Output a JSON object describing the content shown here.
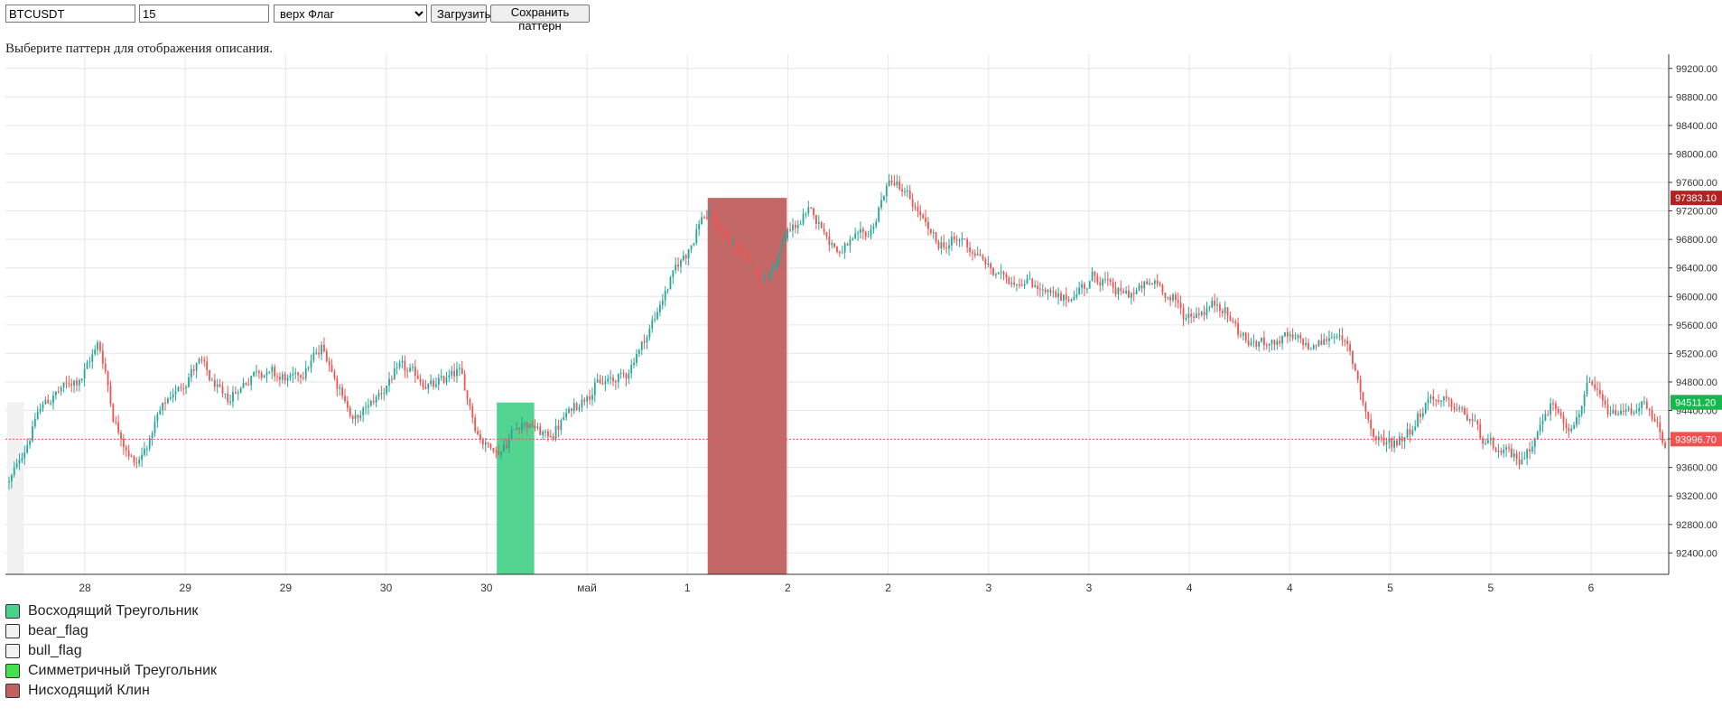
{
  "controls": {
    "symbol_value": "BTCUSDT",
    "interval_value": "15",
    "pattern_select": "верх Флаг",
    "load_label": "Загрузить",
    "save_label": "Сохранить паттерн"
  },
  "description": "Выберите паттерн для отображения описания.",
  "legend": [
    {
      "label": "Восходящий Треугольник",
      "color": "#4ad28a"
    },
    {
      "label": "bear_flag",
      "color": "#f2f2f2"
    },
    {
      "label": "bull_flag",
      "color": "#f2f2f2"
    },
    {
      "label": "Симметричный Треугольник",
      "color": "#44e04e"
    },
    {
      "label": "Нисходящий Клин",
      "color": "#c0605f"
    }
  ],
  "chart_data": {
    "type": "candlestick",
    "symbol": "BTCUSDT",
    "interval": "15",
    "ylim": [
      92100,
      99400
    ],
    "y_ticks": [
      99200,
      98800,
      98400,
      98000,
      97600,
      97200,
      96800,
      96400,
      96000,
      95600,
      95200,
      94800,
      94400,
      94000,
      93600,
      93200,
      92800,
      92400
    ],
    "x_tick_labels": [
      "28",
      "29",
      "29",
      "30",
      "30",
      "май",
      "1",
      "2",
      "2",
      "3",
      "3",
      "4",
      "4",
      "5",
      "5",
      "6"
    ],
    "price_anchors": [
      {
        "t": 0,
        "p": 93400
      },
      {
        "t": 12,
        "p": 94500
      },
      {
        "t": 28,
        "p": 94900
      },
      {
        "t": 34,
        "p": 95400
      },
      {
        "t": 40,
        "p": 94200
      },
      {
        "t": 48,
        "p": 93600
      },
      {
        "t": 58,
        "p": 94400
      },
      {
        "t": 72,
        "p": 95100
      },
      {
        "t": 82,
        "p": 94500
      },
      {
        "t": 95,
        "p": 95000
      },
      {
        "t": 108,
        "p": 94800
      },
      {
        "t": 120,
        "p": 95300
      },
      {
        "t": 132,
        "p": 94200
      },
      {
        "t": 140,
        "p": 94600
      },
      {
        "t": 150,
        "p": 95000
      },
      {
        "t": 162,
        "p": 94700
      },
      {
        "t": 172,
        "p": 95000
      },
      {
        "t": 180,
        "p": 94000
      },
      {
        "t": 188,
        "p": 93800
      },
      {
        "t": 196,
        "p": 94300
      },
      {
        "t": 206,
        "p": 94000
      },
      {
        "t": 222,
        "p": 94700
      },
      {
        "t": 236,
        "p": 94900
      },
      {
        "t": 246,
        "p": 95600
      },
      {
        "t": 254,
        "p": 96300
      },
      {
        "t": 262,
        "p": 96800
      },
      {
        "t": 266,
        "p": 97200
      },
      {
        "t": 278,
        "p": 96700
      },
      {
        "t": 290,
        "p": 96200
      },
      {
        "t": 298,
        "p": 96900
      },
      {
        "t": 308,
        "p": 97200
      },
      {
        "t": 318,
        "p": 96600
      },
      {
        "t": 330,
        "p": 96900
      },
      {
        "t": 338,
        "p": 97700
      },
      {
        "t": 346,
        "p": 97300
      },
      {
        "t": 356,
        "p": 96700
      },
      {
        "t": 366,
        "p": 96800
      },
      {
        "t": 378,
        "p": 96300
      },
      {
        "t": 392,
        "p": 96200
      },
      {
        "t": 404,
        "p": 95900
      },
      {
        "t": 416,
        "p": 96300
      },
      {
        "t": 428,
        "p": 96000
      },
      {
        "t": 440,
        "p": 96200
      },
      {
        "t": 452,
        "p": 95700
      },
      {
        "t": 464,
        "p": 95900
      },
      {
        "t": 476,
        "p": 95300
      },
      {
        "t": 488,
        "p": 95400
      },
      {
        "t": 500,
        "p": 95300
      },
      {
        "t": 510,
        "p": 95500
      },
      {
        "t": 516,
        "p": 95000
      },
      {
        "t": 524,
        "p": 93900
      },
      {
        "t": 534,
        "p": 94000
      },
      {
        "t": 546,
        "p": 94600
      },
      {
        "t": 560,
        "p": 94300
      },
      {
        "t": 570,
        "p": 93800
      },
      {
        "t": 580,
        "p": 93700
      },
      {
        "t": 592,
        "p": 94500
      },
      {
        "t": 600,
        "p": 94100
      },
      {
        "t": 606,
        "p": 94800
      },
      {
        "t": 614,
        "p": 94300
      },
      {
        "t": 626,
        "p": 94500
      },
      {
        "t": 636,
        "p": 93900
      }
    ],
    "candle_count": 637,
    "last_price": 93996.7,
    "price_markers": [
      {
        "value": 97383.1,
        "label": "97383.10",
        "color": "#b22222"
      },
      {
        "value": 94516.8,
        "label": "94516.80",
        "color": "#808080"
      },
      {
        "value": 94511.2,
        "label": "94511.20",
        "color": "#16b84e"
      },
      {
        "value": 93996.7,
        "label": "93996.70",
        "color": "#ef5350"
      }
    ],
    "current_price_line": {
      "value": 93996.7,
      "color": "#ef5350",
      "style": "dotted"
    },
    "pattern_regions": [
      {
        "label": "Восходящий Треугольник",
        "color": "#4ad28a",
        "t_start": 188,
        "t_end": 201,
        "p_low": 92100,
        "p_high": 94511.2
      },
      {
        "label": "Нисходящий Клин",
        "color": "#c0605f",
        "t_start": 269,
        "t_end": 298,
        "p_low": 92100,
        "p_high": 97383.1
      },
      {
        "label": "",
        "color": "#f0f0f0",
        "t_start": 0,
        "t_end": 5,
        "p_low": 92100,
        "p_high": 94516.8
      }
    ],
    "colors": {
      "up": "#26a69a",
      "down": "#ef5350",
      "grid": "#e6e6e6"
    }
  }
}
